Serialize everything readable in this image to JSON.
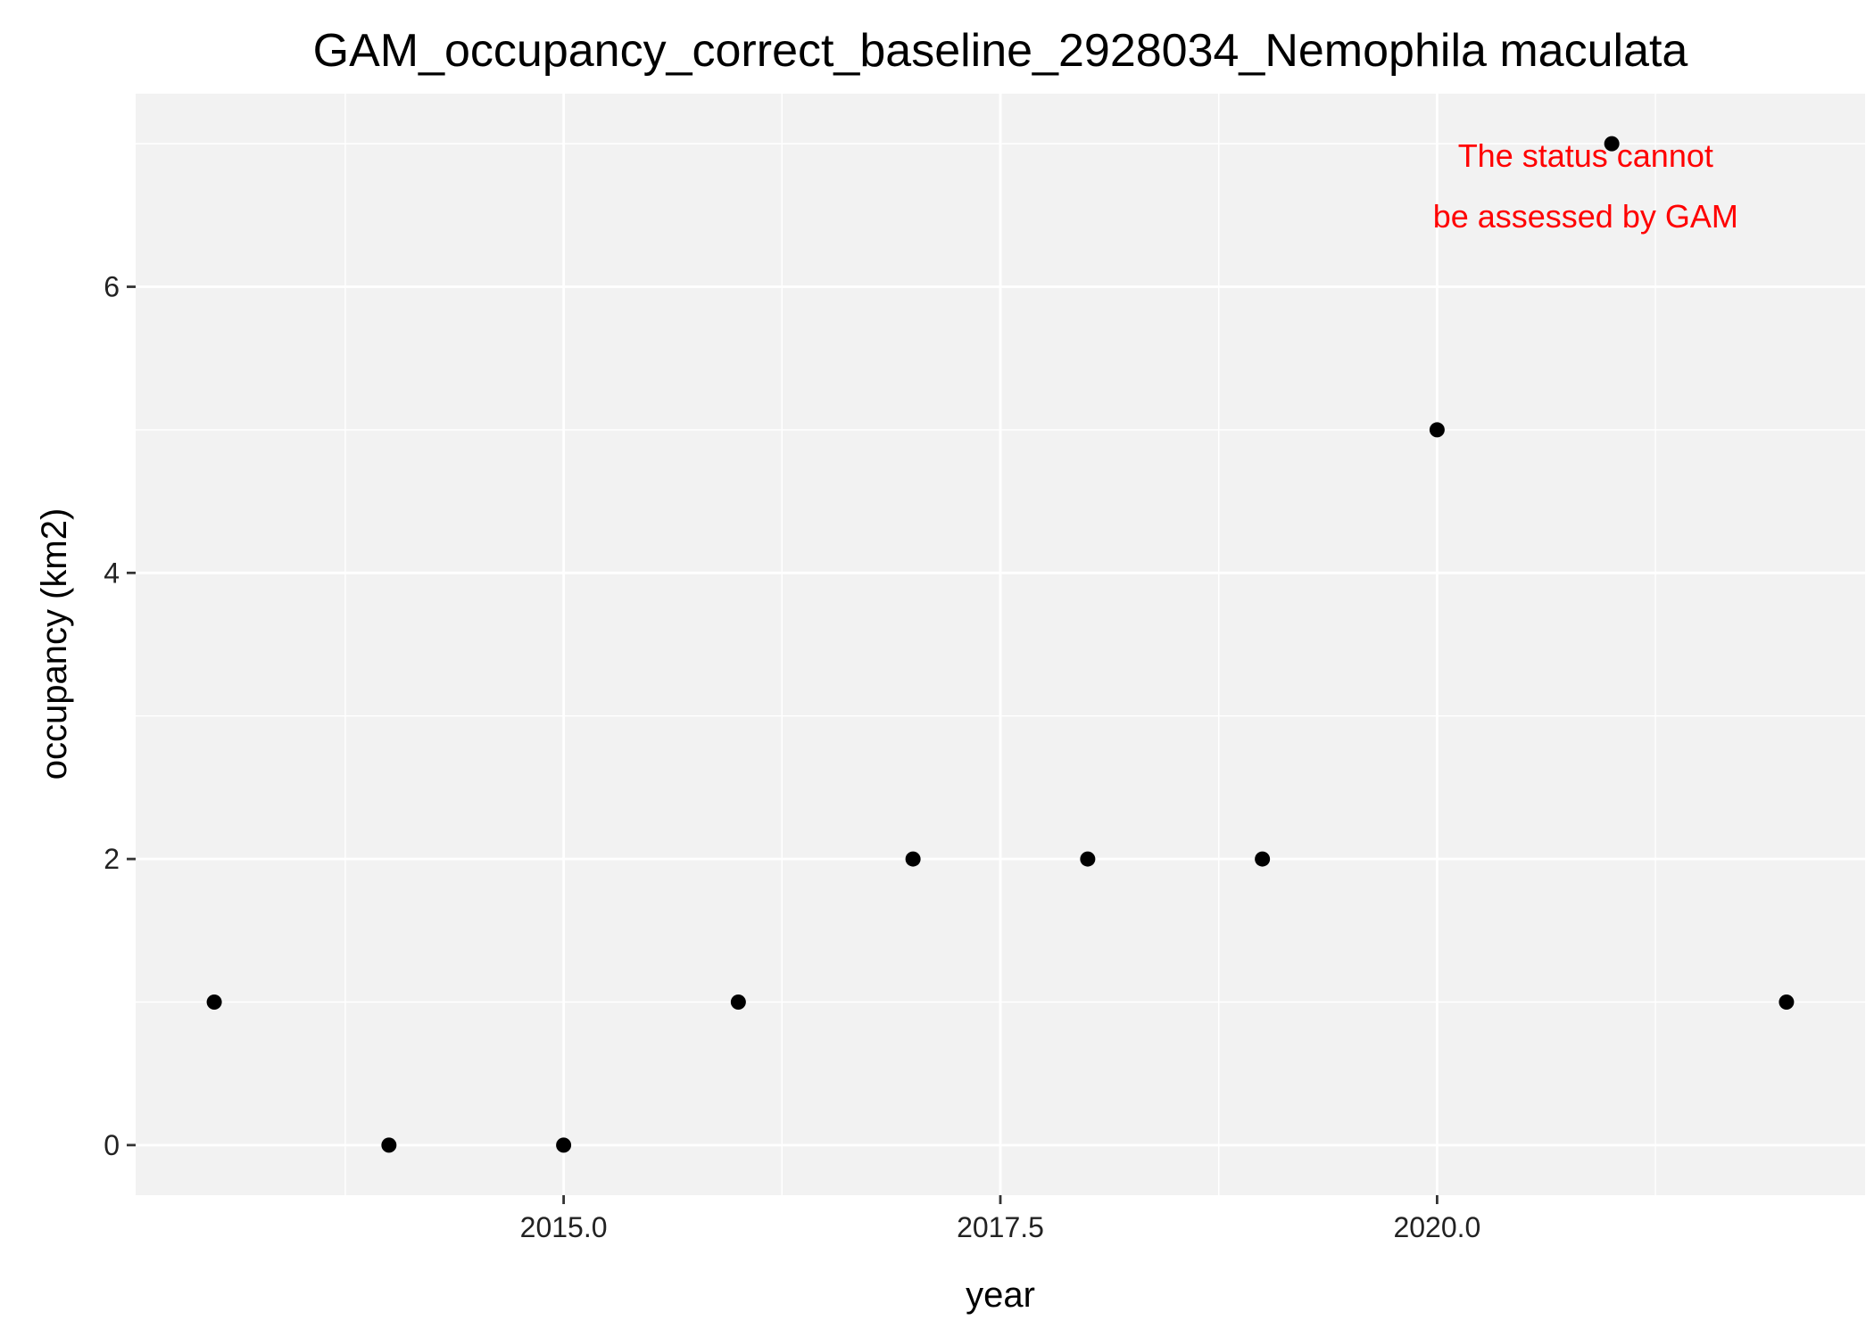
{
  "chart_data": {
    "type": "scatter",
    "title": "GAM_occupancy_correct_baseline_2928034_Nemophila maculata",
    "xlabel": "year",
    "ylabel": "occupancy (km2)",
    "x": [
      2013,
      2014,
      2015,
      2016,
      2017,
      2018,
      2019,
      2020,
      2021,
      2022
    ],
    "y": [
      1,
      0,
      0,
      1,
      2,
      2,
      2,
      5,
      7,
      1
    ],
    "xlim": [
      2012.55,
      2022.45
    ],
    "ylim": [
      -0.35,
      7.35
    ],
    "x_major_ticks": [
      2015,
      2017.5,
      2020
    ],
    "x_tick_labels": [
      "2015.0",
      "2017.5",
      "2020.0"
    ],
    "x_minor_ticks": [
      2013.75,
      2016.25,
      2018.75,
      2021.25
    ],
    "y_major_ticks": [
      0,
      2,
      4,
      6
    ],
    "y_tick_labels": [
      "0",
      "2",
      "4",
      "6"
    ],
    "y_minor_ticks": [
      1,
      3,
      5,
      7
    ],
    "grid": true,
    "legend": "none",
    "annotation": {
      "lines": [
        "The status cannot",
        "be assessed by GAM"
      ],
      "color": "#ff0000"
    },
    "colors": {
      "panel_background": "#f2f2f2",
      "grid": "#ffffff",
      "point": "#000000"
    }
  }
}
